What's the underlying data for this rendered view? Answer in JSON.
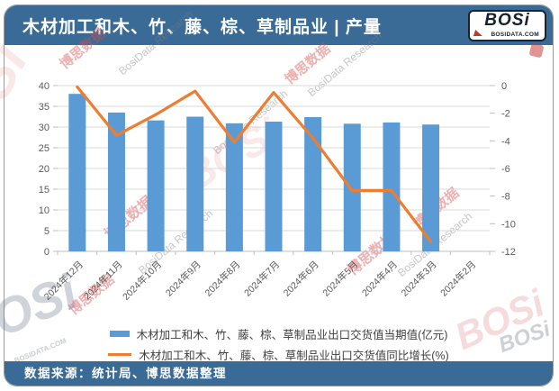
{
  "header": {
    "title": "木材加工和木、竹、藤、棕、草制品业 | 产量",
    "logo": {
      "name": "BOSi",
      "domain": "BOSIDATA.COM"
    }
  },
  "chart_data": {
    "type": "combo",
    "categories": [
      "2024年12月",
      "2024年11月",
      "2024年10月",
      "2024年9月",
      "2024年8月",
      "2024年7月",
      "2024年6月",
      "2024年5月",
      "2024年4月",
      "2024年3月",
      "2024年2月"
    ],
    "series": [
      {
        "name": "木材加工和木、竹、藤、棕、草制品业出口交货值当期值(亿元)",
        "type": "bar",
        "axis": "left",
        "color": "#5B9BD5",
        "values": [
          38.0,
          33.5,
          31.6,
          32.5,
          30.9,
          31.3,
          32.4,
          30.8,
          31.1,
          30.6,
          null
        ]
      },
      {
        "name": "木材加工和木、竹、藤、棕、草制品业出口交货值同比增长(%)",
        "type": "line",
        "axis": "right",
        "color": "#ED7D31",
        "values": [
          -0.1,
          -3.6,
          -2.1,
          -0.4,
          -4.1,
          -0.5,
          -3.8,
          -7.6,
          -7.6,
          -11.3,
          null
        ]
      }
    ],
    "left_axis": {
      "min": 0,
      "max": 40,
      "step": 5,
      "ticks": [
        "0",
        "5",
        "10",
        "15",
        "20",
        "25",
        "30",
        "35",
        "40"
      ]
    },
    "right_axis": {
      "min": -12,
      "max": 0,
      "step": -2,
      "ticks": [
        "0",
        "-2",
        "-4",
        "-6",
        "-8",
        "-10",
        "-12"
      ]
    },
    "grid": true,
    "legend_position": "bottom"
  },
  "footer": {
    "source_text": "数据来源：统计局、博思数据整理"
  },
  "watermarks": {
    "brand_cn": "博思数据",
    "brand_en": "BosiData Research",
    "logo": "BOSi",
    "logo_domain": "BOSIDATA.COM"
  },
  "colors": {
    "band_blue": "#3a6a96",
    "bar_blue": "#5B9BD5",
    "line_orange": "#ED7D31",
    "grid_gray": "#D9D9D9",
    "axis_gray": "#BFBFBF",
    "tick_text": "#595959"
  }
}
